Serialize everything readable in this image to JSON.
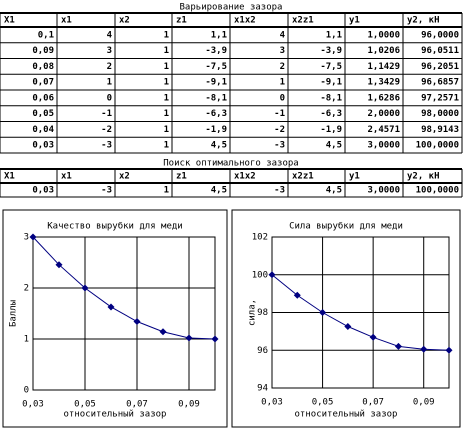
{
  "tables": [
    {
      "title": "Варьирование зазора",
      "header": [
        "Х1",
        "х1",
        "х2",
        "z1",
        "х1х2",
        "х2z1",
        "у1",
        "у2, кН"
      ],
      "rows": [
        [
          "0,1",
          "4",
          "1",
          "1,1",
          "4",
          "1,1",
          "1,0000",
          "96,0000"
        ],
        [
          "0,09",
          "3",
          "1",
          "-3,9",
          "3",
          "-3,9",
          "1,0206",
          "96,0511"
        ],
        [
          "0,08",
          "2",
          "1",
          "-7,5",
          "2",
          "-7,5",
          "1,1429",
          "96,2051"
        ],
        [
          "0,07",
          "1",
          "1",
          "-9,1",
          "1",
          "-9,1",
          "1,3429",
          "96,6857"
        ],
        [
          "0,06",
          "0",
          "1",
          "-8,1",
          "0",
          "-8,1",
          "1,6286",
          "97,2571"
        ],
        [
          "0,05",
          "-1",
          "1",
          "-6,3",
          "-1",
          "-6,3",
          "2,0000",
          "98,0000"
        ],
        [
          "0,04",
          "-2",
          "1",
          "-1,9",
          "-2",
          "-1,9",
          "2,4571",
          "98,9143"
        ],
        [
          "0,03",
          "-3",
          "1",
          "4,5",
          "-3",
          "4,5",
          "3,0000",
          "100,0000"
        ]
      ]
    },
    {
      "title": "Поиск оптимального зазора",
      "header": [
        "Х1",
        "х1",
        "х2",
        "z1",
        "х1х2",
        "х2z1",
        "у1",
        "у2, кН"
      ],
      "rows": [
        [
          "0,03",
          "-3",
          "1",
          "4,5",
          "-3",
          "4,5",
          "3,0000",
          "100,0000"
        ]
      ]
    }
  ],
  "chart_data": [
    {
      "type": "line",
      "title": "Качество вырубки для меди",
      "xlabel": "относительный зазор",
      "ylabel": "Баллы",
      "x": [
        0.03,
        0.04,
        0.05,
        0.06,
        0.07,
        0.08,
        0.09,
        0.1
      ],
      "values": [
        3.0,
        2.4571,
        2.0,
        1.6286,
        1.3429,
        1.1429,
        1.0206,
        1.0
      ],
      "color": "#000080",
      "xlim": [
        0.03,
        0.1
      ],
      "ylim": [
        0,
        3
      ],
      "xticks": [
        {
          "value": 0.03,
          "label": "0,03"
        },
        {
          "value": 0.05,
          "label": "0,05"
        },
        {
          "value": 0.07,
          "label": "0,07"
        },
        {
          "value": 0.09,
          "label": "0,09"
        }
      ],
      "yticks": [
        0,
        1,
        2,
        3
      ],
      "grid": true
    },
    {
      "type": "line",
      "title": "Сила вырубки для меди",
      "xlabel": "относительный зазор",
      "ylabel": "сила,",
      "x": [
        0.03,
        0.04,
        0.05,
        0.06,
        0.07,
        0.08,
        0.09,
        0.1
      ],
      "values": [
        100.0,
        98.9143,
        98.0,
        97.2571,
        96.6857,
        96.2051,
        96.0511,
        96.0
      ],
      "color": "#000080",
      "xlim": [
        0.03,
        0.1
      ],
      "ylim": [
        94,
        102
      ],
      "xticks": [
        {
          "value": 0.03,
          "label": "0,03"
        },
        {
          "value": 0.05,
          "label": "0,05"
        },
        {
          "value": 0.07,
          "label": "0,07"
        },
        {
          "value": 0.09,
          "label": "0,09"
        }
      ],
      "yticks": [
        94,
        96,
        98,
        100,
        102
      ],
      "grid": true
    }
  ]
}
